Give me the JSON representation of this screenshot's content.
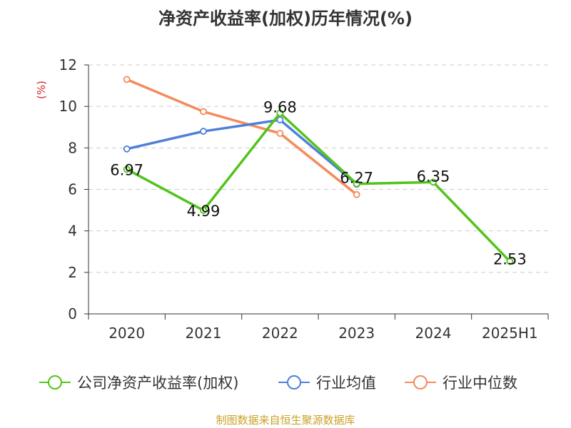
{
  "title": "净资产收益率(加权)历年情况(%)",
  "source": "制图数据来自恒生聚源数据库",
  "chart_data": {
    "type": "line",
    "title": "净资产收益率(加权)历年情况(%)",
    "ylabel": "(%)",
    "xlabel": "",
    "categories": [
      "2020",
      "2021",
      "2022",
      "2023",
      "2024",
      "2025H1"
    ],
    "ylim": [
      0,
      12
    ],
    "yticks": [
      0,
      2,
      4,
      6,
      8,
      10,
      12
    ],
    "grid": true,
    "legend_position": "bottom",
    "series": [
      {
        "name": "公司净资产收益率(加权)",
        "color": "#52c41a",
        "values": [
          6.97,
          4.99,
          9.68,
          6.27,
          6.35,
          2.53
        ],
        "labels": [
          "6.97",
          "4.99",
          "9.68",
          "6.27",
          "6.35",
          "2.53"
        ]
      },
      {
        "name": "行业均值",
        "color": "#4f7fd8",
        "values": [
          7.95,
          8.8,
          9.35,
          6.25,
          null,
          null
        ]
      },
      {
        "name": "行业中位数",
        "color": "#f48b5b",
        "values": [
          11.3,
          9.75,
          8.7,
          5.75,
          null,
          null
        ]
      }
    ]
  }
}
